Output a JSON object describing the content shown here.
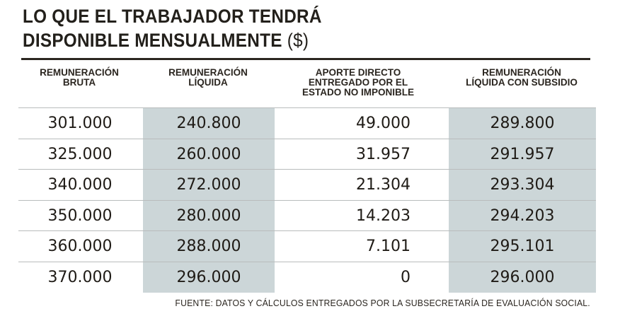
{
  "title": {
    "line1": "LO QUE EL TRABAJADOR TENDRÁ",
    "line2": "DISPONIBLE  MENSUALMENTE",
    "unit": "($)"
  },
  "table": {
    "headers": [
      "REMUNERACIÓN\nBRUTA",
      "REMUNERACIÓN\nLÍQUIDA",
      "APORTE DIRECTO\nENTREGADO POR EL\nESTADO NO IMPONIBLE",
      "REMUNERACIÓN\nLÍQUIDA CON SUBSIDIO"
    ],
    "rows": [
      [
        "301.000",
        "240.800",
        "49.000",
        "289.800"
      ],
      [
        "325.000",
        "260.000",
        "31.957",
        "291.957"
      ],
      [
        "340.000",
        "272.000",
        "21.304",
        "293.304"
      ],
      [
        "350.000",
        "280.000",
        "14.203",
        "294.203"
      ],
      [
        "360.000",
        "288.000",
        "7.101",
        "295.101"
      ],
      [
        "370.000",
        "296.000",
        "0",
        "296.000"
      ]
    ],
    "shade_color": "#ccd6d8"
  },
  "source": "FUENTE: DATOS Y CÁLCULOS ENTREGADOS POR LA SUBSECRETARÍA  DE EVALUACIÓN SOCIAL."
}
